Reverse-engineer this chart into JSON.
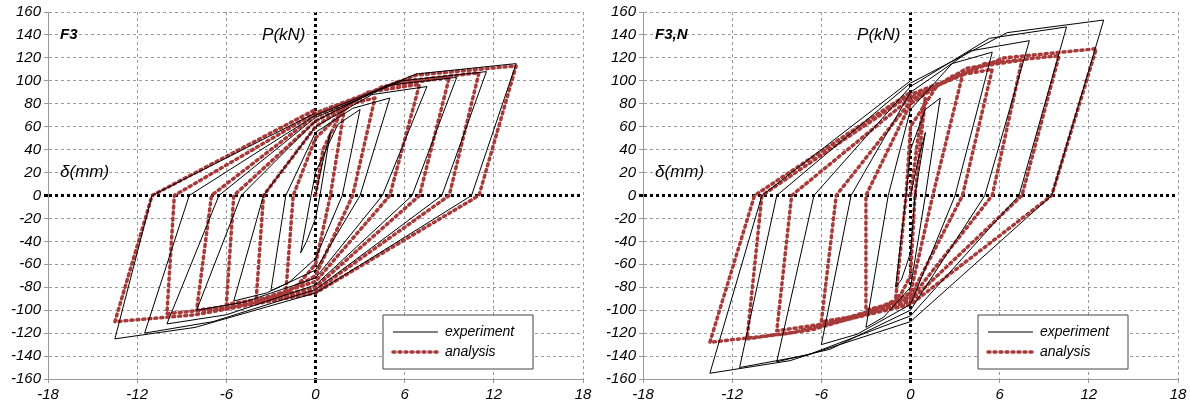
{
  "chart_data": [
    {
      "type": "line",
      "title": "F3",
      "xlabel": "δ(mm)",
      "ylabel": "P(kN)",
      "xlim": [
        -18,
        18
      ],
      "xticks": [
        -18,
        -12,
        -6,
        0,
        6,
        12,
        18
      ],
      "ylim": [
        -160,
        160
      ],
      "yticks": [
        -160,
        -140,
        -120,
        -100,
        -80,
        -60,
        -40,
        -20,
        0,
        20,
        40,
        60,
        80,
        100,
        120,
        140,
        160
      ],
      "grid": true,
      "legend": "bottom right",
      "marker": "none",
      "series": [
        {
          "name": "experiment",
          "color": "#000000",
          "line_style": "solid",
          "x": [
            0,
            0.5,
            1,
            0.3,
            0,
            -0.6,
            -1,
            -0.3,
            0,
            1.5,
            3,
            1.8,
            0,
            -1.8,
            -3,
            -2,
            0,
            2.5,
            5,
            3,
            0,
            -3.3,
            -5.5,
            -3.5,
            0,
            3.8,
            7.5,
            4.5,
            0,
            -4.8,
            -8,
            -5,
            0,
            4.8,
            9.5,
            6.5,
            0,
            -6,
            -10,
            -6.5,
            0,
            5.8,
            11.5,
            8.5,
            0,
            -6.9,
            -11.5,
            -8.5,
            0,
            6.8,
            13.5,
            10.5,
            0,
            -8.1,
            -13.5,
            -11,
            0
          ],
          "values": [
            0,
            30,
            55,
            0,
            -20,
            -40,
            -50,
            0,
            20,
            62,
            75,
            0,
            -55,
            -76,
            -83,
            0,
            55,
            76,
            85,
            0,
            -65,
            -85,
            -92,
            0,
            60,
            88,
            95,
            0,
            -72,
            -93,
            -100,
            0,
            65,
            96,
            103,
            0,
            -78,
            -104,
            -112,
            0,
            68,
            100,
            108,
            0,
            -82,
            -110,
            -120,
            0,
            70,
            106,
            115,
            0,
            -85,
            -115,
            -125,
            0,
            72
          ]
        },
        {
          "name": "analysis",
          "color": "#a83a3a",
          "line_style": "dotted",
          "x": [
            0,
            0.5,
            2,
            1,
            0,
            -1.2,
            -2,
            -1.5,
            0,
            2.4,
            4,
            2.5,
            0,
            -2.4,
            -4,
            -3.5,
            0,
            3.5,
            7,
            5,
            0,
            -3.6,
            -6,
            -5.5,
            0,
            4.5,
            9,
            7,
            0,
            -4.8,
            -8,
            -7,
            0,
            5.5,
            11,
            9,
            0,
            -6,
            -10,
            -9.5,
            0,
            6.8,
            13.5,
            11,
            0,
            -8.1,
            -13.5,
            -11,
            0
          ],
          "values": [
            0,
            40,
            80,
            0,
            -60,
            -78,
            -85,
            0,
            50,
            80,
            85,
            0,
            -70,
            -87,
            -92,
            0,
            60,
            90,
            97,
            0,
            -75,
            -90,
            -95,
            0,
            65,
            95,
            103,
            0,
            -80,
            -95,
            -100,
            0,
            70,
            99,
            107,
            0,
            -83,
            -98,
            -103,
            0,
            72,
            105,
            113,
            0,
            -85,
            -104,
            -110,
            0,
            75
          ]
        }
      ]
    },
    {
      "type": "line",
      "title": "F3,N",
      "xlabel": "δ(mm)",
      "ylabel": "P(kN)",
      "xlim": [
        -18,
        18
      ],
      "xticks": [
        -18,
        -12,
        -6,
        0,
        6,
        12,
        18
      ],
      "ylim": [
        -160,
        160
      ],
      "yticks": [
        -160,
        -140,
        -120,
        -100,
        -80,
        -60,
        -40,
        -20,
        0,
        20,
        40,
        60,
        80,
        100,
        120,
        140,
        160
      ],
      "grid": true,
      "legend": "bottom right",
      "marker": "none",
      "series": [
        {
          "name": "experiment",
          "color": "#000000",
          "line_style": "solid",
          "x": [
            0,
            0.5,
            1,
            0.3,
            0,
            -0.6,
            -1,
            -0.3,
            0,
            1,
            2,
            1,
            0,
            -1.8,
            -3,
            -1.5,
            0,
            2.8,
            5.5,
            3,
            0,
            -3.6,
            -6,
            -4,
            0,
            4,
            8,
            5,
            0,
            -5.4,
            -9,
            -6.5,
            0,
            5.3,
            10.5,
            7.3,
            0,
            -6.9,
            -11.5,
            -9,
            0,
            6.5,
            13,
            9.5,
            0,
            -8.1,
            -13.5,
            -10,
            0
          ],
          "values": [
            0,
            30,
            55,
            0,
            -50,
            -73,
            -80,
            0,
            40,
            75,
            85,
            0,
            -80,
            -106,
            -115,
            0,
            75,
            115,
            125,
            0,
            -95,
            -121,
            -130,
            0,
            90,
            126,
            135,
            0,
            -100,
            -134,
            -145,
            0,
            95,
            137,
            147,
            0,
            -105,
            -139,
            -150,
            0,
            98,
            142,
            153,
            0,
            -110,
            -144,
            -155,
            0,
            100
          ]
        },
        {
          "name": "analysis",
          "color": "#a83a3a",
          "line_style": "dotted",
          "x": [
            0,
            0.5,
            1,
            0.3,
            0,
            -0.6,
            -1,
            -0.3,
            0,
            1.8,
            3.5,
            1.5,
            0,
            -1.8,
            -3,
            -3,
            0,
            2.8,
            5.5,
            3.5,
            0,
            -3.6,
            -6,
            -5,
            0,
            3.8,
            7.5,
            5.5,
            0,
            -5.4,
            -9,
            -8,
            0,
            5,
            10,
            7.5,
            0,
            -6.6,
            -11,
            -10,
            0,
            6.3,
            12.5,
            9.5,
            0,
            -8.1,
            -13.5,
            -10.5,
            0
          ],
          "values": [
            0,
            50,
            85,
            0,
            -70,
            -85,
            -90,
            0,
            60,
            96,
            105,
            0,
            -85,
            -96,
            -100,
            0,
            80,
            104,
            110,
            0,
            -88,
            -105,
            -110,
            0,
            82,
            111,
            118,
            0,
            -90,
            -111,
            -118,
            0,
            85,
            115,
            122,
            0,
            -92,
            -117,
            -125,
            0,
            88,
            120,
            128,
            0,
            -95,
            -120,
            -128,
            0,
            90
          ]
        }
      ]
    }
  ]
}
